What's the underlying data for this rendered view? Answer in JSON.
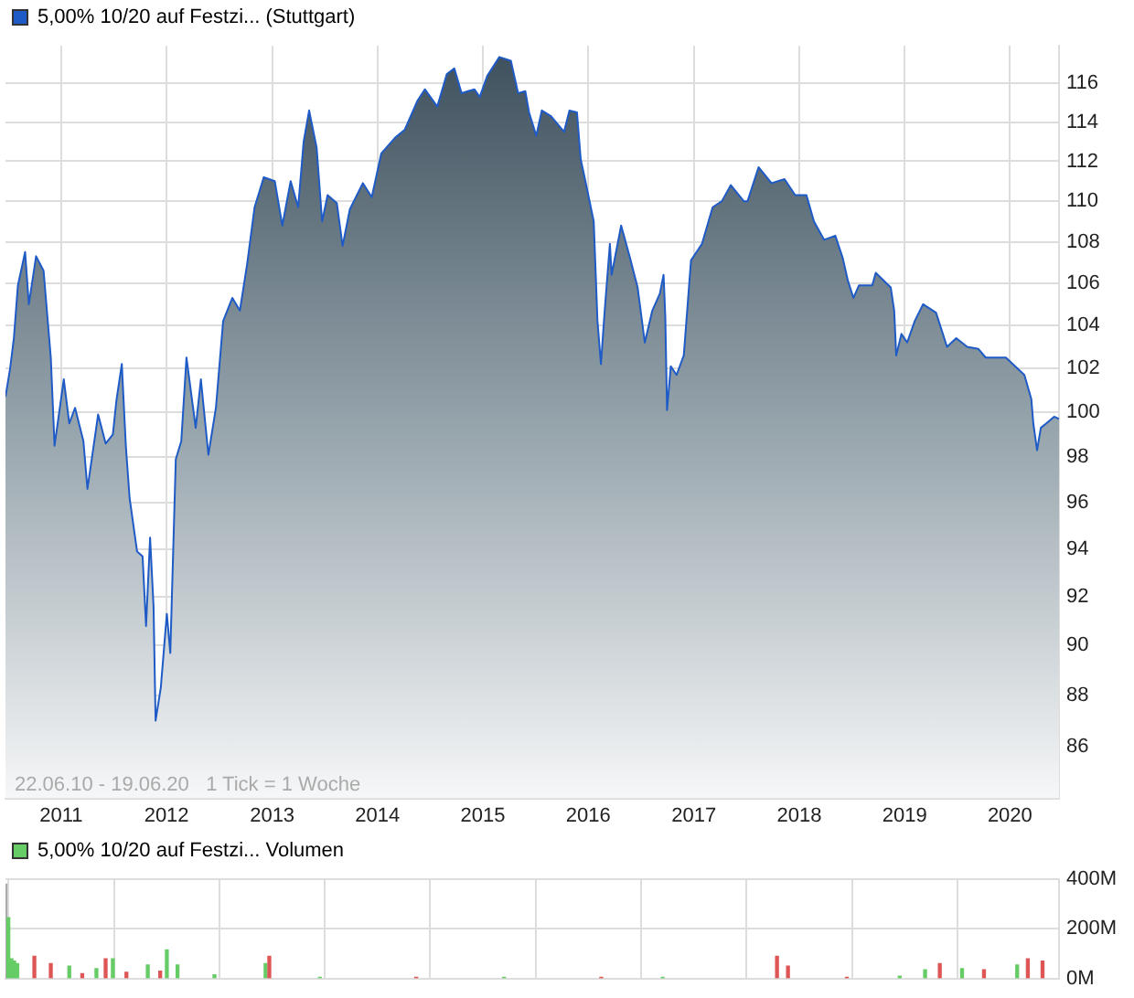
{
  "chart_data": [
    {
      "type": "area",
      "log": true,
      "grid": true,
      "legend": "top left",
      "xlim": [
        "2010-06-22",
        "2020-06-19"
      ],
      "xticks": [
        "2011",
        "2012",
        "2013",
        "2014",
        "2015",
        "2016",
        "2017",
        "2018",
        "2019",
        "2020"
      ],
      "ylim": [
        84,
        118
      ],
      "yticks": [
        86,
        88,
        90,
        92,
        94,
        96,
        98,
        100,
        102,
        104,
        106,
        108,
        110,
        112,
        114,
        116
      ],
      "annotations": [
        "22.06.10 - 19.06.20   1 Tick = 1 Woche"
      ],
      "series": [
        {
          "name": "5,00% 10/20 auf Festzi... (Stuttgart)",
          "color": "#1f5bc6",
          "x": [
            "2010-06-22",
            "2010-07-08",
            "2010-07-21",
            "2010-08-04",
            "2010-08-29",
            "2010-09-11",
            "2010-10-06",
            "2010-11-01",
            "2010-11-26",
            "2010-12-09",
            "2011-01-10",
            "2011-01-29",
            "2011-02-18",
            "2011-03-19",
            "2011-04-02",
            "2011-05-09",
            "2011-06-04",
            "2011-06-29",
            "2011-07-11",
            "2011-07-30",
            "2011-08-13",
            "2011-08-26",
            "2011-09-21",
            "2011-10-10",
            "2011-10-22",
            "2011-11-05",
            "2011-11-17",
            "2011-11-24",
            "2011-12-12",
            "2012-01-02",
            "2012-01-14",
            "2012-02-02",
            "2012-02-21",
            "2012-03-10",
            "2012-04-11",
            "2012-04-29",
            "2012-05-25",
            "2012-06-20",
            "2012-07-15",
            "2012-08-16",
            "2012-09-11",
            "2012-10-06",
            "2012-11-01",
            "2012-12-03",
            "2013-01-10",
            "2013-02-05",
            "2013-03-06",
            "2013-04-01",
            "2013-04-20",
            "2013-05-09",
            "2013-06-04",
            "2013-06-23",
            "2013-07-12",
            "2013-08-13",
            "2013-09-02",
            "2013-09-27",
            "2013-11-11",
            "2013-12-12",
            "2014-01-14",
            "2014-03-03",
            "2014-04-05",
            "2014-05-19",
            "2014-06-14",
            "2014-07-27",
            "2014-08-29",
            "2014-09-24",
            "2014-10-19",
            "2014-12-03",
            "2014-12-21",
            "2015-01-16",
            "2015-02-27",
            "2015-04-08",
            "2015-05-03",
            "2015-05-28",
            "2015-06-10",
            "2015-07-05",
            "2015-07-24",
            "2015-08-25",
            "2015-10-09",
            "2015-10-28",
            "2015-11-23",
            "2015-12-06",
            "2015-12-25",
            "2016-01-20",
            "2016-02-02",
            "2016-02-14",
            "2016-02-27",
            "2016-03-16",
            "2016-03-22",
            "2016-04-24",
            "2016-05-25",
            "2016-06-20",
            "2016-07-15",
            "2016-08-10",
            "2016-09-05",
            "2016-09-18",
            "2016-09-24",
            "2016-09-30",
            "2016-10-13",
            "2016-11-02",
            "2016-11-27",
            "2016-12-22",
            "2017-01-29",
            "2017-03-07",
            "2017-04-08",
            "2017-05-09",
            "2017-06-23",
            "2017-07-06",
            "2017-08-13",
            "2017-09-27",
            "2017-11-11",
            "2017-12-18",
            "2018-01-26",
            "2018-02-21",
            "2018-03-28",
            "2018-05-06",
            "2018-06-01",
            "2018-06-19",
            "2018-07-08",
            "2018-07-27",
            "2018-09-11",
            "2018-09-23",
            "2018-11-14",
            "2018-11-26",
            "2018-12-03",
            "2018-12-21",
            "2019-01-10",
            "2019-02-05",
            "2019-03-06",
            "2019-04-20",
            "2019-05-28",
            "2019-06-29",
            "2019-08-06",
            "2019-09-14",
            "2019-10-09",
            "2019-11-16",
            "2019-12-18",
            "2020-01-19",
            "2020-02-20",
            "2020-03-15",
            "2020-03-22",
            "2020-04-04",
            "2020-04-17",
            "2020-05-06",
            "2020-06-02",
            "2020-06-19"
          ],
          "values": [
            100.7,
            102,
            103.4,
            105.9,
            107.5,
            105,
            107.3,
            106.6,
            102.5,
            98.5,
            101.5,
            99.5,
            100.2,
            98.7,
            96.6,
            99.9,
            98.6,
            99,
            100.5,
            102.2,
            98.5,
            96.2,
            93.9,
            93.7,
            90.8,
            94.5,
            91.6,
            87,
            88.3,
            91.3,
            89.7,
            97.9,
            98.7,
            102.5,
            99.3,
            101.5,
            98.1,
            100.2,
            104.2,
            105.3,
            104.7,
            106.9,
            109.7,
            111.2,
            111,
            108.8,
            111,
            109.7,
            113,
            114.6,
            112.7,
            109,
            110.3,
            109.9,
            107.8,
            109.6,
            110.9,
            110.2,
            112.4,
            113.2,
            113.6,
            115.1,
            115.7,
            114.8,
            116.5,
            116.8,
            115.5,
            115.7,
            115.3,
            116.4,
            117.4,
            117.2,
            115.5,
            115.6,
            114.5,
            113.3,
            114.6,
            114.3,
            113.5,
            114.6,
            114.5,
            112.1,
            110.8,
            109,
            104.2,
            102.2,
            104.7,
            107.9,
            106.4,
            108.8,
            107.2,
            105.8,
            103.2,
            104.7,
            105.5,
            106.4,
            104.4,
            100.1,
            102.1,
            101.7,
            102.6,
            107.1,
            107.9,
            109.7,
            110,
            110.8,
            110,
            110,
            111.7,
            110.9,
            111.1,
            110.3,
            110.3,
            109,
            108.1,
            108.3,
            107.2,
            106.1,
            105.3,
            105.9,
            105.9,
            106.5,
            105.8,
            104.7,
            102.6,
            103.6,
            103.2,
            104.2,
            105,
            104.6,
            103,
            103.4,
            103,
            102.9,
            102.5,
            102.5,
            102.5,
            102.1,
            101.7,
            100.6,
            99.5,
            98.3,
            99.3,
            99.5,
            99.8,
            99.7
          ]
        }
      ]
    },
    {
      "type": "bar",
      "grid": true,
      "legend": "top left",
      "tick_labels": "y",
      "xlim": [
        "2010-06-22",
        "2020-06-19"
      ],
      "xticks": [
        "2011",
        "2012",
        "2013",
        "2014",
        "2015",
        "2016",
        "2017",
        "2018",
        "2019",
        "2020"
      ],
      "ylim": [
        0,
        400
      ],
      "yticks": [
        {
          "value": 0,
          "label": "0M"
        },
        {
          "value": 200,
          "label": "200M"
        },
        {
          "value": 400,
          "label": "400M"
        }
      ],
      "series": [
        {
          "name": "5,00% 10/20 auf Festzi... Volumen",
          "color": "#66cc66",
          "x": [
            "2010-06-22",
            "2010-07-02",
            "2010-07-13",
            "2010-07-22",
            "2010-08-02",
            "2010-09-30",
            "2010-11-26",
            "2011-01-29",
            "2011-03-15",
            "2011-05-03",
            "2011-06-04",
            "2011-06-29",
            "2011-08-15",
            "2011-10-28",
            "2011-12-10",
            "2012-01-02",
            "2012-02-08",
            "2012-06-15",
            "2012-12-09",
            "2012-12-22",
            "2013-06-15",
            "2014-05-15",
            "2015-03-15",
            "2016-02-15",
            "2016-09-15",
            "2017-10-16",
            "2017-11-23",
            "2018-06-15",
            "2018-12-15",
            "2019-03-13",
            "2019-05-03",
            "2019-07-19",
            "2019-10-03",
            "2020-01-26",
            "2020-03-03",
            "2020-04-23"
          ],
          "values": [
            380,
            245,
            80,
            70,
            60,
            90,
            60,
            50,
            20,
            40,
            80,
            80,
            25,
            55,
            30,
            115,
            55,
            15,
            60,
            90,
            5,
            5,
            5,
            5,
            5,
            90,
            50,
            5,
            10,
            35,
            60,
            40,
            35,
            55,
            80,
            70
          ],
          "colors": [
            "#aaaaaa",
            "#66cc66",
            "#66cc66",
            "#66cc66",
            "#66cc66",
            "#dd5555",
            "#dd5555",
            "#66cc66",
            "#dd5555",
            "#66cc66",
            "#dd5555",
            "#66cc66",
            "#dd5555",
            "#66cc66",
            "#dd5555",
            "#66cc66",
            "#66cc66",
            "#66cc66",
            "#66cc66",
            "#dd5555",
            "#66cc66",
            "#dd5555",
            "#66cc66",
            "#dd5555",
            "#66cc66",
            "#dd5555",
            "#dd5555",
            "#dd5555",
            "#66cc66",
            "#66cc66",
            "#dd5555",
            "#66cc66",
            "#dd5555",
            "#66cc66",
            "#dd5555",
            "#dd5555"
          ]
        }
      ]
    }
  ]
}
